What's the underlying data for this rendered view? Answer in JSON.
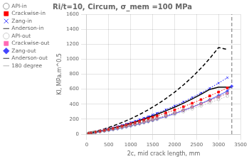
{
  "chart_data": {
    "type": "line",
    "title": "Ri/t=10, Circum, σ_mem =100 MPa",
    "x_label": "2c, mid crack length, mm",
    "y_label": "KI, MPa.m^0.5",
    "xlim": [
      0,
      3500
    ],
    "ylim": [
      0,
      1600
    ],
    "xticks": [
      0,
      500,
      1000,
      1500,
      2000,
      2500,
      3000,
      3500
    ],
    "yticks": [
      0,
      200,
      400,
      600,
      800,
      1000,
      1200,
      1400,
      1600
    ],
    "grid": true,
    "legend": "upper left",
    "series": [
      {
        "name": "API-in",
        "color": "#808080",
        "marker": "open_circle",
        "line_style": "dotted",
        "x": [
          0,
          50,
          100,
          150,
          200,
          300,
          400,
          500,
          600,
          700,
          800,
          900,
          1000,
          1100,
          1200,
          1300,
          1400,
          1500,
          1600,
          1800,
          2000,
          2200,
          2400,
          2600,
          2800,
          3000,
          3200
        ],
        "values": [
          0,
          12,
          18,
          23,
          28,
          38,
          48,
          59,
          70,
          82,
          95,
          108,
          122,
          136,
          150,
          165,
          180,
          196,
          212,
          248,
          285,
          324,
          365,
          408,
          453,
          500,
          549
        ]
      },
      {
        "name": "Crackwise-in",
        "color": "#ff0000",
        "marker": "square",
        "line_style": "dotted",
        "x": [
          0,
          50,
          100,
          200,
          300,
          400,
          500,
          600,
          700,
          800,
          900,
          1000,
          1100,
          1200,
          1300,
          1400,
          1500,
          1600,
          1800,
          2000,
          2200,
          2400,
          2600,
          2800,
          3000,
          3200
        ],
        "values": [
          0,
          12,
          19,
          29,
          41,
          52,
          65,
          78,
          92,
          107,
          122,
          138,
          154,
          171,
          188,
          206,
          224,
          243,
          282,
          323,
          366,
          412,
          460,
          510,
          562,
          617
        ]
      },
      {
        "name": "Zang-in",
        "color": "#0000ff",
        "marker": "x",
        "line_style": "dotted",
        "x": [
          0,
          50,
          100,
          200,
          300,
          400,
          500,
          600,
          700,
          800,
          900,
          1000,
          1100,
          1200,
          1300,
          1400,
          1500,
          1600,
          1800,
          2000,
          2200,
          2400,
          2600,
          2800,
          3000,
          3200
        ],
        "values": [
          0,
          12,
          20,
          32,
          45,
          59,
          73,
          88,
          104,
          121,
          139,
          157,
          176,
          196,
          216,
          237,
          259,
          281,
          328,
          378,
          432,
          489,
          549,
          613,
          681,
          753
        ]
      },
      {
        "name": "Anderson-in",
        "color": "#000000",
        "marker": "none",
        "line_style": "dashed",
        "x": [
          0,
          200,
          400,
          600,
          800,
          1000,
          1200,
          1400,
          1600,
          1800,
          2000,
          2200,
          2400,
          2600,
          2800,
          3000,
          3200
        ],
        "values": [
          0,
          35,
          70,
          110,
          155,
          205,
          262,
          325,
          396,
          474,
          560,
          656,
          762,
          880,
          1010,
          1155,
          1130
        ]
      },
      {
        "name": "API-out",
        "color": "#c0c0c0",
        "marker": "open_circle",
        "line_style": "dotted",
        "x": [
          0,
          50,
          100,
          200,
          300,
          400,
          500,
          600,
          700,
          800,
          900,
          1000,
          1100,
          1200,
          1300,
          1400,
          1500,
          1600,
          1800,
          2000,
          2200,
          2400,
          2600,
          2800,
          3000,
          3200
        ],
        "values": [
          0,
          10,
          15,
          24,
          33,
          43,
          53,
          63,
          74,
          86,
          98,
          111,
          124,
          138,
          152,
          167,
          182,
          197,
          230,
          264,
          300,
          338,
          377,
          419,
          462,
          508
        ]
      },
      {
        "name": "Crackwise-out",
        "color": "#ff69b4",
        "marker": "square",
        "line_style": "dotted",
        "x": [
          0,
          50,
          100,
          200,
          300,
          400,
          500,
          600,
          700,
          800,
          900,
          1000,
          1100,
          1200,
          1300,
          1400,
          1500,
          1600,
          1800,
          2000,
          2200,
          2400,
          2600,
          2800,
          3000,
          3200
        ],
        "values": [
          0,
          10,
          16,
          26,
          36,
          46,
          57,
          68,
          80,
          93,
          106,
          120,
          134,
          149,
          164,
          179,
          195,
          211,
          245,
          281,
          319,
          360,
          402,
          447,
          493,
          542
        ]
      },
      {
        "name": "Zang-out",
        "color": "#4444ff",
        "marker": "diamond",
        "line_style": "solid",
        "x": [
          0,
          50,
          100,
          200,
          300,
          400,
          500,
          600,
          700,
          800,
          900,
          1000,
          1100,
          1200,
          1300,
          1400,
          1500,
          1600,
          1800,
          2000,
          2200,
          2400,
          2600,
          2800,
          3000,
          3200,
          3300
        ],
        "values": [
          0,
          8,
          13,
          22,
          31,
          40,
          50,
          60,
          71,
          83,
          95,
          109,
          123,
          137,
          152,
          167,
          183,
          200,
          235,
          273,
          315,
          360,
          408,
          460,
          515,
          575,
          640
        ]
      },
      {
        "name": "Anderson-out",
        "color": "#000000",
        "marker": "none",
        "line_style": "solid",
        "x": [
          0,
          200,
          400,
          600,
          800,
          1000,
          1200,
          1400,
          1600,
          1800,
          2000,
          2200,
          2400,
          2600,
          2800,
          3000,
          3200,
          3300
        ],
        "values": [
          0,
          26,
          52,
          80,
          111,
          145,
          182,
          222,
          265,
          311,
          360,
          413,
          470,
          531,
          597,
          628,
          628,
          628
        ]
      },
      {
        "name": "180 degree",
        "color": "#a0a0a0",
        "marker": "none",
        "line_style": "dashed",
        "x": [
          3300,
          3300
        ],
        "values": [
          0,
          1600
        ]
      }
    ]
  }
}
